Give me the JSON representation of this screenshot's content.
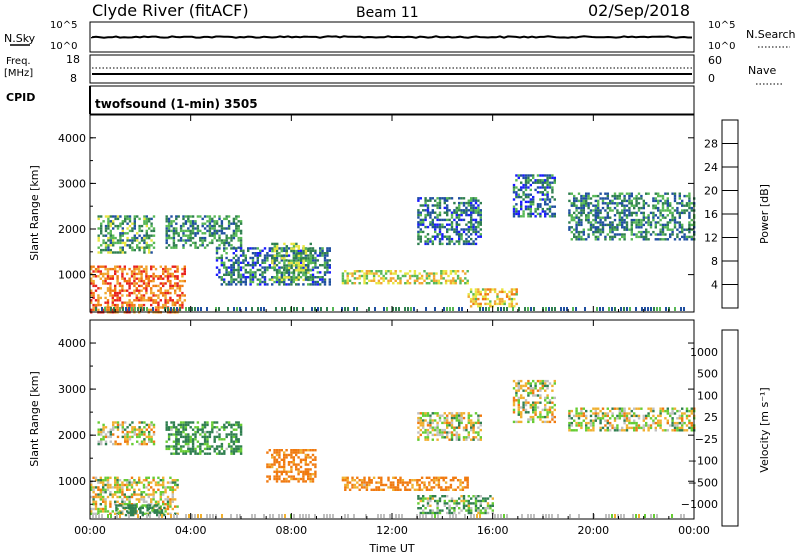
{
  "header": {
    "station": "Clyde River (fitACF)",
    "beam": "Beam 11",
    "date": "02/Sep/2018"
  },
  "nsky_panel": {
    "left_label": "N.Sky",
    "left_ticks": [
      "10^5",
      "10^0"
    ],
    "right_ticks": [
      "10^5",
      "10^0"
    ],
    "right_label": "N.Search"
  },
  "freq_panel": {
    "left_label_top": "Freq.",
    "left_label_unit": "[MHz]",
    "left_ticks": [
      "18",
      "8"
    ],
    "right_ticks": [
      "60",
      "0"
    ],
    "right_label": "Nave"
  },
  "cpid_panel": {
    "label": "CPID",
    "text": "twofsound (1-min) 3505"
  },
  "colors": {
    "power_scale": [
      "#1a1aff",
      "#1f4fa0",
      "#2f7f4f",
      "#57b856",
      "#e8e640",
      "#f1a630",
      "#f07a10",
      "#e8201c",
      "#ff0000"
    ],
    "velocity_scale": [
      "#ff0000",
      "#e8401c",
      "#f07a10",
      "#f0b030",
      "#c0c0c0",
      "#c0c0c0",
      "#66cc33",
      "#2f7f4f",
      "#1f4fa0",
      "#1040c0"
    ]
  },
  "chart_data": [
    {
      "type": "heatmap",
      "panel": "power",
      "ylabel": "Slant Range [km]",
      "ylim": [
        180,
        4500
      ],
      "yticks": [
        "1000",
        "2000",
        "3000",
        "4000"
      ],
      "xlim_hours": [
        0,
        24
      ],
      "xticks": [
        "00:00",
        "04:00",
        "08:00",
        "12:00",
        "16:00",
        "20:00",
        "00:00"
      ],
      "colorbar": {
        "label": "Power [dB]",
        "range": [
          0,
          32
        ],
        "ticks": [
          "4",
          "8",
          "12",
          "16",
          "20",
          "24",
          "28"
        ]
      },
      "echo_regions": [
        {
          "t0": 0.0,
          "t1": 3.8,
          "r0": 200,
          "r1": 1200,
          "level": 26
        },
        {
          "t0": 0.3,
          "t1": 2.5,
          "r0": 1500,
          "r1": 2300,
          "level": 12
        },
        {
          "t0": 3.0,
          "t1": 6.0,
          "r0": 1600,
          "r1": 2300,
          "level": 10
        },
        {
          "t0": 5.0,
          "t1": 9.5,
          "r0": 800,
          "r1": 1600,
          "level": 8
        },
        {
          "t0": 7.2,
          "t1": 8.8,
          "r0": 900,
          "r1": 1700,
          "level": 14
        },
        {
          "t0": 10.0,
          "t1": 15.0,
          "r0": 800,
          "r1": 1100,
          "level": 18
        },
        {
          "t0": 13.0,
          "t1": 15.5,
          "r0": 1700,
          "r1": 2700,
          "level": 8
        },
        {
          "t0": 15.0,
          "t1": 17.0,
          "r0": 300,
          "r1": 700,
          "level": 20
        },
        {
          "t0": 16.8,
          "t1": 18.5,
          "r0": 2300,
          "r1": 3200,
          "level": 8
        },
        {
          "t0": 19.0,
          "t1": 24.0,
          "r0": 1800,
          "r1": 2800,
          "level": 10
        }
      ]
    },
    {
      "type": "heatmap",
      "panel": "velocity",
      "ylabel": "Slant Range [km]",
      "ylim": [
        180,
        4500
      ],
      "yticks": [
        "1000",
        "2000",
        "3000",
        "4000"
      ],
      "xlim_hours": [
        0,
        24
      ],
      "xticks": [
        "00:00",
        "04:00",
        "08:00",
        "12:00",
        "16:00",
        "20:00",
        "00:00"
      ],
      "xlabel": "Time UT",
      "colorbar": {
        "label": "Velocity [m s⁻¹]",
        "ticks": [
          "1000",
          "500",
          "100",
          "25",
          "−25",
          "−100",
          "−500",
          "−1000"
        ]
      },
      "echo_regions": [
        {
          "t0": 0.0,
          "t1": 3.5,
          "r0": 300,
          "r1": 1100,
          "velocity": 0
        },
        {
          "t0": 0.3,
          "t1": 2.5,
          "r0": 1800,
          "r1": 2300,
          "velocity": 0
        },
        {
          "t0": 1.0,
          "t1": 3.0,
          "r0": 250,
          "r1": 500,
          "velocity": 200
        },
        {
          "t0": 3.0,
          "t1": 6.0,
          "r0": 1600,
          "r1": 2300,
          "velocity": 150
        },
        {
          "t0": 7.0,
          "t1": 9.0,
          "r0": 1000,
          "r1": 1700,
          "velocity": -200
        },
        {
          "t0": 10.0,
          "t1": 15.0,
          "r0": 800,
          "r1": 1100,
          "velocity": -150
        },
        {
          "t0": 13.0,
          "t1": 16.0,
          "r0": 300,
          "r1": 700,
          "velocity": 80
        },
        {
          "t0": 13.0,
          "t1": 15.5,
          "r0": 1900,
          "r1": 2500,
          "velocity": 0
        },
        {
          "t0": 16.8,
          "t1": 18.5,
          "r0": 2300,
          "r1": 3200,
          "velocity": 0
        },
        {
          "t0": 19.0,
          "t1": 24.0,
          "r0": 2100,
          "r1": 2600,
          "velocity": 0
        }
      ]
    }
  ]
}
